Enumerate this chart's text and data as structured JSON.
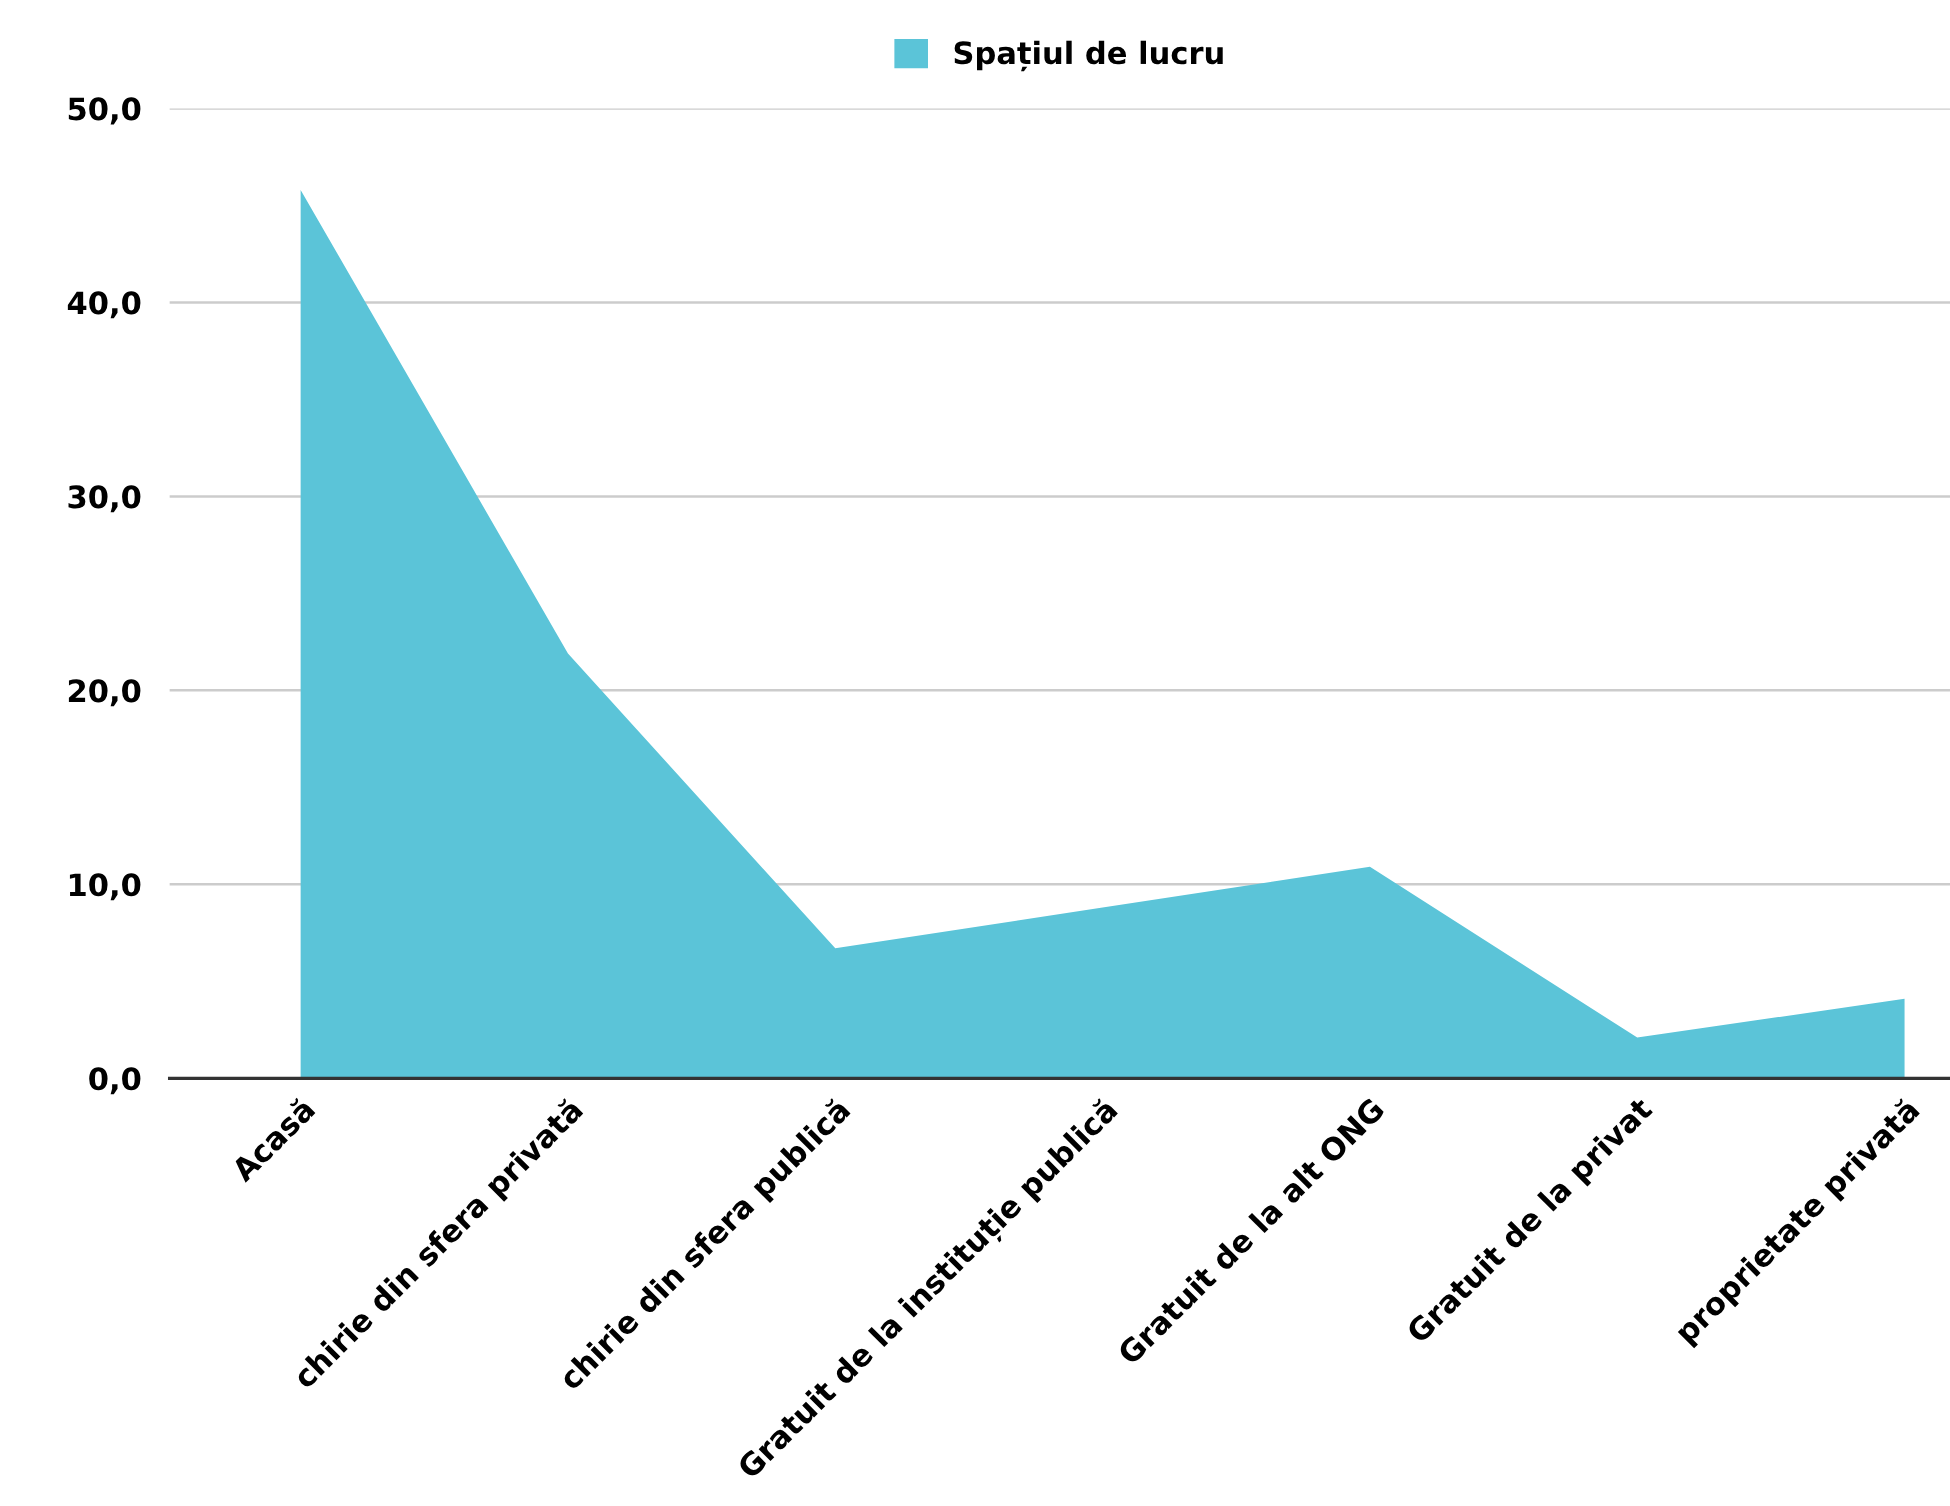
{
  "chart_data": {
    "type": "area",
    "categories": [
      "Acasă",
      "chirie din sfera privată",
      "chirie din sfera publică",
      "Gratuit de la instituție publică",
      "Gratuit de la alt ONG",
      "Gratuit de la privat",
      "proprietate privată"
    ],
    "series": [
      {
        "name": "Spațiul de lucru",
        "color": "#5bc4d8",
        "values": [
          45.8,
          21.9,
          6.7,
          8.8,
          10.9,
          2.1,
          4.1
        ]
      }
    ],
    "ylim": [
      0,
      50
    ],
    "yticks": [
      {
        "value": 0,
        "label": "0,0"
      },
      {
        "value": 10,
        "label": "10,0"
      },
      {
        "value": 20,
        "label": "20,0"
      },
      {
        "value": 30,
        "label": "30,0"
      },
      {
        "value": 40,
        "label": "40,0"
      },
      {
        "value": 50,
        "label": "50,0"
      }
    ],
    "grid": "y",
    "legend": "top"
  }
}
